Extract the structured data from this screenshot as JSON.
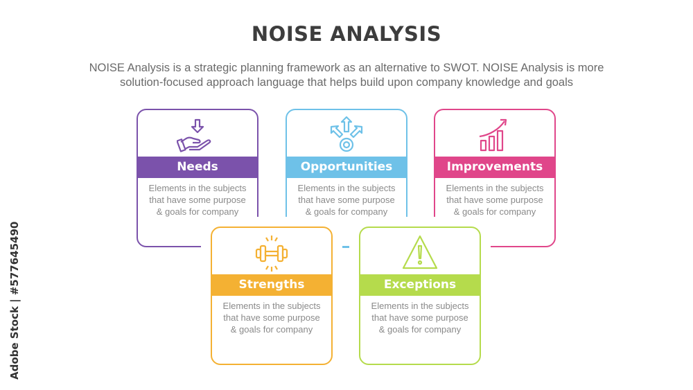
{
  "header": {
    "title": "NOISE ANALYSIS",
    "subtitle_line1": "NOISE Analysis is a strategic planning framework as an alternative to SWOT. NOISE Analysis is more",
    "subtitle_line2": "solution-focused approach language that helps build upon company knowledge and goals"
  },
  "items": [
    {
      "label": "Needs",
      "icon": "hand-receive-arrow-icon",
      "color": "#7b52ab",
      "desc": [
        "Elements in the subjects",
        "that have  some purpose",
        "& goals for company"
      ]
    },
    {
      "label": "Opportunities",
      "icon": "branching-arrows-icon",
      "color": "#6ec1e8",
      "desc": [
        "Elements in the subjects",
        "that have  some purpose",
        "& goals for company"
      ]
    },
    {
      "label": "Improvements",
      "icon": "growth-chart-icon",
      "color": "#e0468a",
      "desc": [
        "Elements in the subjects",
        "that have  some purpose",
        "& goals for company"
      ]
    },
    {
      "label": "Strengths",
      "icon": "dumbbell-icon",
      "color": "#f4b133",
      "desc": [
        "Elements in the subjects",
        "that have  some purpose",
        "& goals for company"
      ]
    },
    {
      "label": "Exceptions",
      "icon": "warning-triangle-icon",
      "color": "#b5db4c",
      "desc": [
        "Elements in the subjects",
        "that have  some purpose",
        "& goals for company"
      ]
    }
  ],
  "watermark": "Adobe Stock | #577645490"
}
